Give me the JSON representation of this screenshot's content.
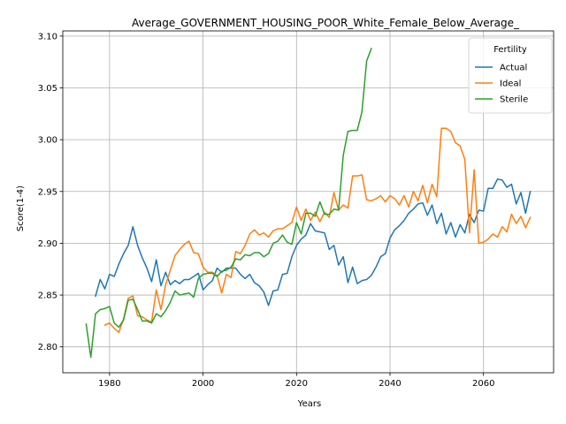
{
  "chart_data": {
    "type": "line",
    "title": "Average_GOVERNMENT_HOUSING_POOR_White_Female_Below_Average_",
    "xlabel": "Years",
    "ylabel": "Score(1-4)",
    "xlim": [
      1970,
      2075
    ],
    "ylim": [
      2.775,
      3.105
    ],
    "xticks": [
      1980,
      2000,
      2020,
      2040,
      2060
    ],
    "yticks": [
      2.8,
      2.85,
      2.9,
      2.95,
      3.0,
      3.05,
      3.1
    ],
    "ytick_labels": [
      "2.80",
      "2.85",
      "2.90",
      "2.95",
      "3.00",
      "3.05",
      "3.10"
    ],
    "grid": true,
    "legend": {
      "title": "Fertility",
      "placement": "top-right"
    },
    "series": [
      {
        "name": "Actual",
        "color": "#1f77b4",
        "x": [
          1977,
          1978,
          1979,
          1980,
          1981,
          1982,
          1983,
          1984,
          1985,
          1986,
          1987,
          1988,
          1989,
          1990,
          1991,
          1992,
          1993,
          1994,
          1995,
          1996,
          1997,
          1998,
          1999,
          2000,
          2001,
          2002,
          2003,
          2004,
          2005,
          2006,
          2007,
          2008,
          2009,
          2010,
          2011,
          2012,
          2013,
          2014,
          2015,
          2016,
          2017,
          2018,
          2019,
          2020,
          2021,
          2022,
          2023,
          2024,
          2025,
          2026,
          2027,
          2028,
          2029,
          2030,
          2031,
          2032,
          2033,
          2034,
          2035,
          2036,
          2037,
          2038,
          2039,
          2040,
          2041,
          2042,
          2043,
          2044,
          2045,
          2046,
          2047,
          2048,
          2049,
          2050,
          2051,
          2052,
          2053,
          2054,
          2055,
          2056,
          2057,
          2058,
          2059,
          2060,
          2061,
          2062,
          2063,
          2064,
          2065,
          2066,
          2067,
          2068,
          2069,
          2070
        ],
        "values": [
          2.849,
          2.865,
          2.856,
          2.87,
          2.868,
          2.88,
          2.89,
          2.898,
          2.916,
          2.898,
          2.886,
          2.876,
          2.863,
          2.884,
          2.859,
          2.872,
          2.86,
          2.864,
          2.861,
          2.865,
          2.865,
          2.868,
          2.871,
          2.855,
          2.86,
          2.864,
          2.876,
          2.872,
          2.876,
          2.876,
          2.876,
          2.87,
          2.866,
          2.87,
          2.862,
          2.859,
          2.853,
          2.84,
          2.854,
          2.855,
          2.87,
          2.871,
          2.887,
          2.898,
          2.904,
          2.908,
          2.919,
          2.912,
          2.911,
          2.91,
          2.894,
          2.898,
          2.879,
          2.887,
          2.862,
          2.877,
          2.861,
          2.864,
          2.865,
          2.869,
          2.877,
          2.887,
          2.89,
          2.905,
          2.913,
          2.917,
          2.922,
          2.929,
          2.933,
          2.938,
          2.939,
          2.927,
          2.937,
          2.919,
          2.929,
          2.909,
          2.92,
          2.906,
          2.918,
          2.91,
          2.928,
          2.92,
          2.932,
          2.931,
          2.953,
          2.953,
          2.962,
          2.961,
          2.954,
          2.957,
          2.938,
          2.949,
          2.929,
          2.95
        ]
      },
      {
        "name": "Ideal",
        "color": "#ff7f0e",
        "x": [
          1979,
          1980,
          1981,
          1982,
          1983,
          1984,
          1985,
          1986,
          1987,
          1988,
          1989,
          1990,
          1991,
          1992,
          1993,
          1994,
          1995,
          1996,
          1997,
          1998,
          1999,
          2000,
          2001,
          2002,
          2003,
          2004,
          2005,
          2006,
          2007,
          2008,
          2009,
          2010,
          2011,
          2012,
          2013,
          2014,
          2015,
          2016,
          2017,
          2018,
          2019,
          2020,
          2021,
          2022,
          2023,
          2024,
          2025,
          2026,
          2027,
          2028,
          2029,
          2030,
          2031,
          2032,
          2033,
          2034,
          2035,
          2036,
          2037,
          2038,
          2039,
          2040,
          2041,
          2042,
          2043,
          2044,
          2045,
          2046,
          2047,
          2048,
          2049,
          2050,
          2051,
          2052,
          2053,
          2054,
          2055,
          2056,
          2057,
          2058,
          2059,
          2060,
          2061,
          2062,
          2063,
          2064,
          2065,
          2066,
          2067,
          2068,
          2069,
          2070
        ],
        "values": [
          2.821,
          2.823,
          2.818,
          2.814,
          2.827,
          2.847,
          2.849,
          2.83,
          2.829,
          2.826,
          2.824,
          2.855,
          2.836,
          2.86,
          2.874,
          2.888,
          2.894,
          2.899,
          2.902,
          2.891,
          2.89,
          2.877,
          2.872,
          2.872,
          2.869,
          2.852,
          2.87,
          2.867,
          2.892,
          2.89,
          2.898,
          2.909,
          2.913,
          2.908,
          2.91,
          2.906,
          2.912,
          2.914,
          2.914,
          2.917,
          2.92,
          2.935,
          2.922,
          2.933,
          2.922,
          2.93,
          2.921,
          2.93,
          2.925,
          2.949,
          2.932,
          2.937,
          2.934,
          2.965,
          2.965,
          2.966,
          2.942,
          2.941,
          2.943,
          2.946,
          2.94,
          2.946,
          2.943,
          2.937,
          2.946,
          2.935,
          2.95,
          2.941,
          2.956,
          2.939,
          2.957,
          2.945,
          3.011,
          3.011,
          3.008,
          2.997,
          2.994,
          2.981,
          2.91,
          2.971,
          2.9,
          2.901,
          2.904,
          2.909,
          2.906,
          2.916,
          2.911,
          2.928,
          2.919,
          2.926,
          2.915,
          2.925
        ]
      },
      {
        "name": "Sterile",
        "color": "#2ca02c",
        "x": [
          1975,
          1976,
          1977,
          1978,
          1979,
          1980,
          1981,
          1982,
          1983,
          1984,
          1985,
          1986,
          1987,
          1988,
          1989,
          1990,
          1991,
          1992,
          1993,
          1994,
          1995,
          1996,
          1997,
          1998,
          1999,
          2000,
          2001,
          2002,
          2003,
          2004,
          2005,
          2006,
          2007,
          2008,
          2009,
          2010,
          2011,
          2012,
          2013,
          2014,
          2015,
          2016,
          2017,
          2018,
          2019,
          2020,
          2021,
          2022,
          2023,
          2024,
          2025,
          2026,
          2027,
          2028,
          2029,
          2030,
          2031,
          2032,
          2033,
          2034,
          2035,
          2036
        ],
        "values": [
          2.822,
          2.79,
          2.832,
          2.836,
          2.837,
          2.839,
          2.823,
          2.819,
          2.826,
          2.845,
          2.846,
          2.836,
          2.825,
          2.825,
          2.823,
          2.832,
          2.829,
          2.835,
          2.843,
          2.854,
          2.85,
          2.851,
          2.852,
          2.848,
          2.866,
          2.87,
          2.871,
          2.871,
          2.868,
          2.873,
          2.874,
          2.877,
          2.885,
          2.884,
          2.889,
          2.888,
          2.891,
          2.891,
          2.887,
          2.89,
          2.9,
          2.902,
          2.908,
          2.901,
          2.899,
          2.92,
          2.909,
          2.929,
          2.929,
          2.926,
          2.94,
          2.928,
          2.928,
          2.933,
          2.932,
          2.985,
          3.008,
          3.009,
          3.009,
          3.027,
          3.076,
          3.088
        ]
      }
    ]
  }
}
